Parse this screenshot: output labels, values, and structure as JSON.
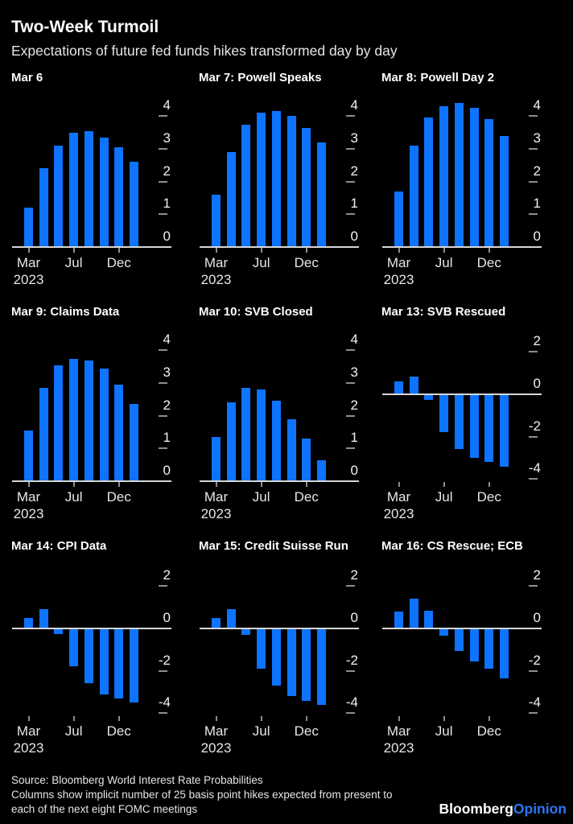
{
  "header": {
    "title": "Two-Week Turmoil",
    "subtitle": "Expectations of future fed funds hikes transformed day by day"
  },
  "footer": {
    "source": "Source: Bloomberg World Interest Rate Probabilities",
    "note1": "Columns show implicit number of 25 basis point hikes expected from present to",
    "note2": "each of the next eight FOMC meetings",
    "brand_white": "Bloomberg",
    "brand_blue": "Opinion"
  },
  "colors": {
    "background": "#000000",
    "bar": "#0e73ff",
    "axis_line": "#d6d6d6",
    "tick": "#8e8e8e",
    "text": "#ffffff",
    "muted_text": "#e6e6e6",
    "brand_opinion_blue": "#2d77f3"
  },
  "chart_data": [
    {
      "type": "bar",
      "title": "Mar 6",
      "values": [
        1.2,
        2.4,
        3.1,
        3.5,
        3.55,
        3.35,
        3.05,
        2.6
      ],
      "y_ticks": [
        4,
        3,
        2,
        1,
        0
      ],
      "ylim": [
        0,
        4.6
      ],
      "x_ticks": [
        {
          "bar": 0,
          "lines": [
            "Mar",
            "2023"
          ]
        },
        {
          "bar": 3,
          "lines": [
            "Jul"
          ]
        },
        {
          "bar": 6,
          "lines": [
            "Dec"
          ]
        }
      ],
      "grid": false,
      "legend": false
    },
    {
      "type": "bar",
      "title": "Mar 7: Powell Speaks",
      "values": [
        1.6,
        2.9,
        3.75,
        4.1,
        4.15,
        4.0,
        3.65,
        3.2
      ],
      "y_ticks": [
        4,
        3,
        2,
        1,
        0
      ],
      "ylim": [
        0,
        4.6
      ],
      "x_ticks": [
        {
          "bar": 0,
          "lines": [
            "Mar",
            "2023"
          ]
        },
        {
          "bar": 3,
          "lines": [
            "Jul"
          ]
        },
        {
          "bar": 6,
          "lines": [
            "Dec"
          ]
        }
      ],
      "grid": false,
      "legend": false
    },
    {
      "type": "bar",
      "title": "Mar 8: Powell Day 2",
      "values": [
        1.7,
        3.1,
        3.95,
        4.3,
        4.4,
        4.25,
        3.9,
        3.4
      ],
      "y_ticks": [
        4,
        3,
        2,
        1,
        0
      ],
      "ylim": [
        0,
        4.6
      ],
      "x_ticks": [
        {
          "bar": 0,
          "lines": [
            "Mar",
            "2023"
          ]
        },
        {
          "bar": 3,
          "lines": [
            "Jul"
          ]
        },
        {
          "bar": 6,
          "lines": [
            "Dec"
          ]
        }
      ],
      "grid": false,
      "legend": false
    },
    {
      "type": "bar",
      "title": "Mar 9: Claims Data",
      "values": [
        1.55,
        2.85,
        3.55,
        3.75,
        3.7,
        3.45,
        2.95,
        2.35
      ],
      "y_ticks": [
        4,
        3,
        2,
        1,
        0
      ],
      "ylim": [
        0,
        4.6
      ],
      "x_ticks": [
        {
          "bar": 0,
          "lines": [
            "Mar",
            "2023"
          ]
        },
        {
          "bar": 3,
          "lines": [
            "Jul"
          ]
        },
        {
          "bar": 6,
          "lines": [
            "Dec"
          ]
        }
      ],
      "grid": false,
      "legend": false
    },
    {
      "type": "bar",
      "title": "Mar 10: SVB Closed",
      "values": [
        1.35,
        2.4,
        2.85,
        2.8,
        2.45,
        1.9,
        1.3,
        0.65
      ],
      "y_ticks": [
        4,
        3,
        2,
        1,
        0
      ],
      "ylim": [
        0,
        4.6
      ],
      "x_ticks": [
        {
          "bar": 0,
          "lines": [
            "Mar",
            "2023"
          ]
        },
        {
          "bar": 3,
          "lines": [
            "Jul"
          ]
        },
        {
          "bar": 6,
          "lines": [
            "Dec"
          ]
        }
      ],
      "grid": false,
      "legend": false
    },
    {
      "type": "bar",
      "title": "Mar 13: SVB Rescued",
      "values": [
        0.6,
        0.85,
        -0.25,
        -1.8,
        -2.6,
        -3.0,
        -3.2,
        -3.4
      ],
      "y_ticks": [
        2,
        0,
        -2,
        -4
      ],
      "ylim": [
        -4.1,
        3.0
      ],
      "x_ticks": [
        {
          "bar": 0,
          "lines": [
            "Mar",
            "2023"
          ]
        },
        {
          "bar": 3,
          "lines": [
            "Jul"
          ]
        },
        {
          "bar": 6,
          "lines": [
            "Dec"
          ]
        }
      ],
      "grid": false,
      "legend": false
    },
    {
      "type": "bar",
      "title": "Mar 14: CPI Data",
      "values": [
        0.5,
        0.9,
        -0.25,
        -1.8,
        -2.6,
        -3.1,
        -3.3,
        -3.5
      ],
      "y_ticks": [
        2,
        0,
        -2,
        -4
      ],
      "ylim": [
        -4.1,
        3.0
      ],
      "x_ticks": [
        {
          "bar": 0,
          "lines": [
            "Mar",
            "2023"
          ]
        },
        {
          "bar": 3,
          "lines": [
            "Jul"
          ]
        },
        {
          "bar": 6,
          "lines": [
            "Dec"
          ]
        }
      ],
      "grid": false,
      "legend": false
    },
    {
      "type": "bar",
      "title": "Mar 15: Credit Suisse Run",
      "values": [
        0.5,
        0.9,
        -0.3,
        -1.9,
        -2.7,
        -3.2,
        -3.4,
        -3.6
      ],
      "y_ticks": [
        2,
        0,
        -2,
        -4
      ],
      "ylim": [
        -4.1,
        3.0
      ],
      "x_ticks": [
        {
          "bar": 0,
          "lines": [
            "Mar",
            "2023"
          ]
        },
        {
          "bar": 3,
          "lines": [
            "Jul"
          ]
        },
        {
          "bar": 6,
          "lines": [
            "Dec"
          ]
        }
      ],
      "grid": false,
      "legend": false
    },
    {
      "type": "bar",
      "title": "Mar 16: CS Rescue; ECB",
      "values": [
        0.8,
        1.4,
        0.85,
        -0.35,
        -1.05,
        -1.55,
        -1.9,
        -2.35
      ],
      "y_ticks": [
        2,
        0,
        -2,
        -4
      ],
      "ylim": [
        -4.1,
        3.0
      ],
      "x_ticks": [
        {
          "bar": 0,
          "lines": [
            "Mar",
            "2023"
          ]
        },
        {
          "bar": 3,
          "lines": [
            "Jul"
          ]
        },
        {
          "bar": 6,
          "lines": [
            "Dec"
          ]
        }
      ],
      "grid": false,
      "legend": false
    }
  ]
}
